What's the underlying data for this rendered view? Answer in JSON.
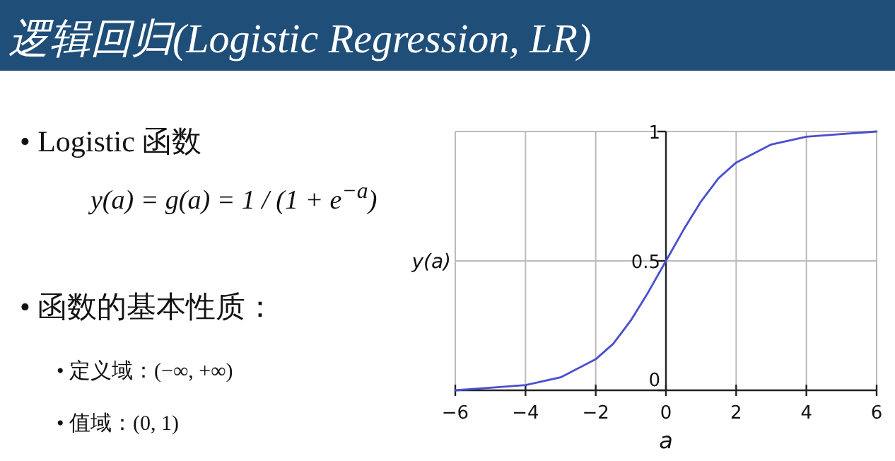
{
  "chart_data": {
    "type": "line",
    "title": "逻辑回归(Logistic Regression, LR)",
    "annotations": [
      "• Logistic 函数",
      "y(a) = g(a) = 1 / (1 + e$^{−a}$)",
      "• 函数的基本性质：",
      "• 定义域：(−∞, +∞)",
      "• 值域：(0, 1)"
    ],
    "x": [
      -6,
      -5,
      -4,
      -3,
      -2,
      -1.5,
      -1,
      -0.5,
      0,
      0.5,
      1,
      1.5,
      2,
      3,
      4,
      5,
      6
    ],
    "series": [
      {
        "color": "#4a4fd0",
        "values": [
          0.0,
          0.01,
          0.02,
          0.05,
          0.12,
          0.18,
          0.27,
          0.38,
          0.5,
          0.62,
          0.73,
          0.82,
          0.88,
          0.95,
          0.98,
          0.99,
          1.0
        ]
      }
    ],
    "xlim": [
      -6,
      6
    ],
    "ylim": [
      0,
      1
    ],
    "xticks": [
      -6,
      -4,
      -2,
      0,
      2,
      4,
      6
    ],
    "yticks": [
      0,
      0.5,
      1
    ],
    "xlabel": "a",
    "ylabel": "y(a)",
    "grid": true
  }
}
